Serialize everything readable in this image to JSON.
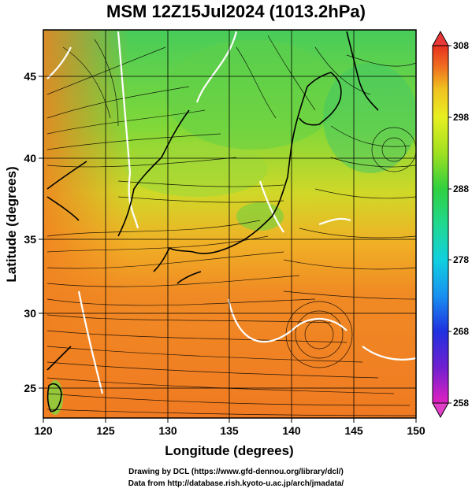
{
  "title": "MSM 12Z15Jul2024 (1013.2hPa)",
  "x_axis": {
    "label": "Longitude (degrees)",
    "range": [
      120,
      150
    ],
    "ticks": [
      "120",
      "125",
      "130",
      "135",
      "140",
      "145",
      "150"
    ],
    "tick_values": [
      120,
      125,
      130,
      135,
      140,
      145,
      150
    ]
  },
  "y_axis": {
    "label": "Latitude  (degrees)",
    "range": [
      22.5,
      47.7
    ],
    "ticks": [
      "25",
      "30",
      "35",
      "40",
      "45"
    ],
    "tick_values": [
      25,
      30,
      35,
      40,
      45
    ]
  },
  "colorbar": {
    "range": [
      258,
      308
    ],
    "ticks": [
      "258",
      "268",
      "278",
      "288",
      "298",
      "308"
    ],
    "tick_values": [
      258,
      268,
      278,
      288,
      298,
      308
    ],
    "colors": [
      "#e020c0",
      "#7020d0",
      "#2030e0",
      "#1890f0",
      "#10d0e0",
      "#20d890",
      "#30d040",
      "#a0e020",
      "#e8f020",
      "#f0c020",
      "#f09020",
      "#f05020",
      "#e83020"
    ]
  },
  "credits": {
    "line1": "Drawing by DCL (https://www.gfd-dennou.org/library/dcl/)",
    "line2": "Data from http://database.rish.kyoto-u.ac.jp/arch/jmadata/"
  }
}
